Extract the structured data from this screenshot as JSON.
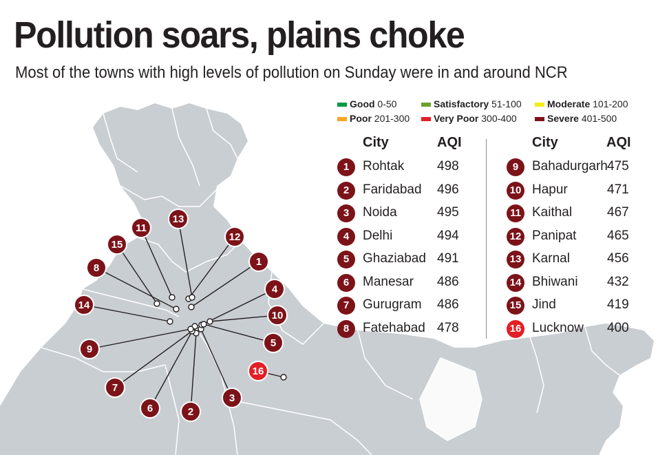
{
  "title": "Pollution soars, plains choke",
  "subtitle": "Most of the towns with high levels of pollution on Sunday were in and around NCR",
  "legend": [
    {
      "name": "Good",
      "range": "0-50",
      "color": "#009a44"
    },
    {
      "name": "Satisfactory",
      "range": "51-100",
      "color": "#6aa22c"
    },
    {
      "name": "Moderate",
      "range": "101-200",
      "color": "#f6eb14"
    },
    {
      "name": "Poor",
      "range": "201-300",
      "color": "#f5a623"
    },
    {
      "name": "Very Poor",
      "range": "300-400",
      "color": "#e21f26"
    },
    {
      "name": "Severe",
      "range": "401-500",
      "color": "#7c1319"
    }
  ],
  "table_headers": {
    "city": "City",
    "aqi": "AQI"
  },
  "cities": [
    {
      "rank": "1",
      "name": "Rohtak",
      "aqi": "498"
    },
    {
      "rank": "2",
      "name": "Faridabad",
      "aqi": "496"
    },
    {
      "rank": "3",
      "name": "Noida",
      "aqi": "495"
    },
    {
      "rank": "4",
      "name": "Delhi",
      "aqi": "494"
    },
    {
      "rank": "5",
      "name": "Ghaziabad",
      "aqi": "491"
    },
    {
      "rank": "6",
      "name": "Manesar",
      "aqi": "486"
    },
    {
      "rank": "7",
      "name": "Gurugram",
      "aqi": "486"
    },
    {
      "rank": "8",
      "name": "Fatehabad",
      "aqi": "478"
    },
    {
      "rank": "9",
      "name": "Bahadurgarh",
      "aqi": "475"
    },
    {
      "rank": "10",
      "name": "Hapur",
      "aqi": "471"
    },
    {
      "rank": "11",
      "name": "Kaithal",
      "aqi": "467"
    },
    {
      "rank": "12",
      "name": "Panipat",
      "aqi": "465"
    },
    {
      "rank": "13",
      "name": "Karnal",
      "aqi": "456"
    },
    {
      "rank": "14",
      "name": "Bhiwani",
      "aqi": "432"
    },
    {
      "rank": "15",
      "name": "Jind",
      "aqi": "419"
    },
    {
      "rank": "16",
      "name": "Lucknow",
      "aqi": "400",
      "category": "Very Poor"
    }
  ],
  "colors": {
    "severe": "#7c1319",
    "very_poor": "#e21f26",
    "land": "#c9ced3",
    "borders": "#ffffff"
  }
}
